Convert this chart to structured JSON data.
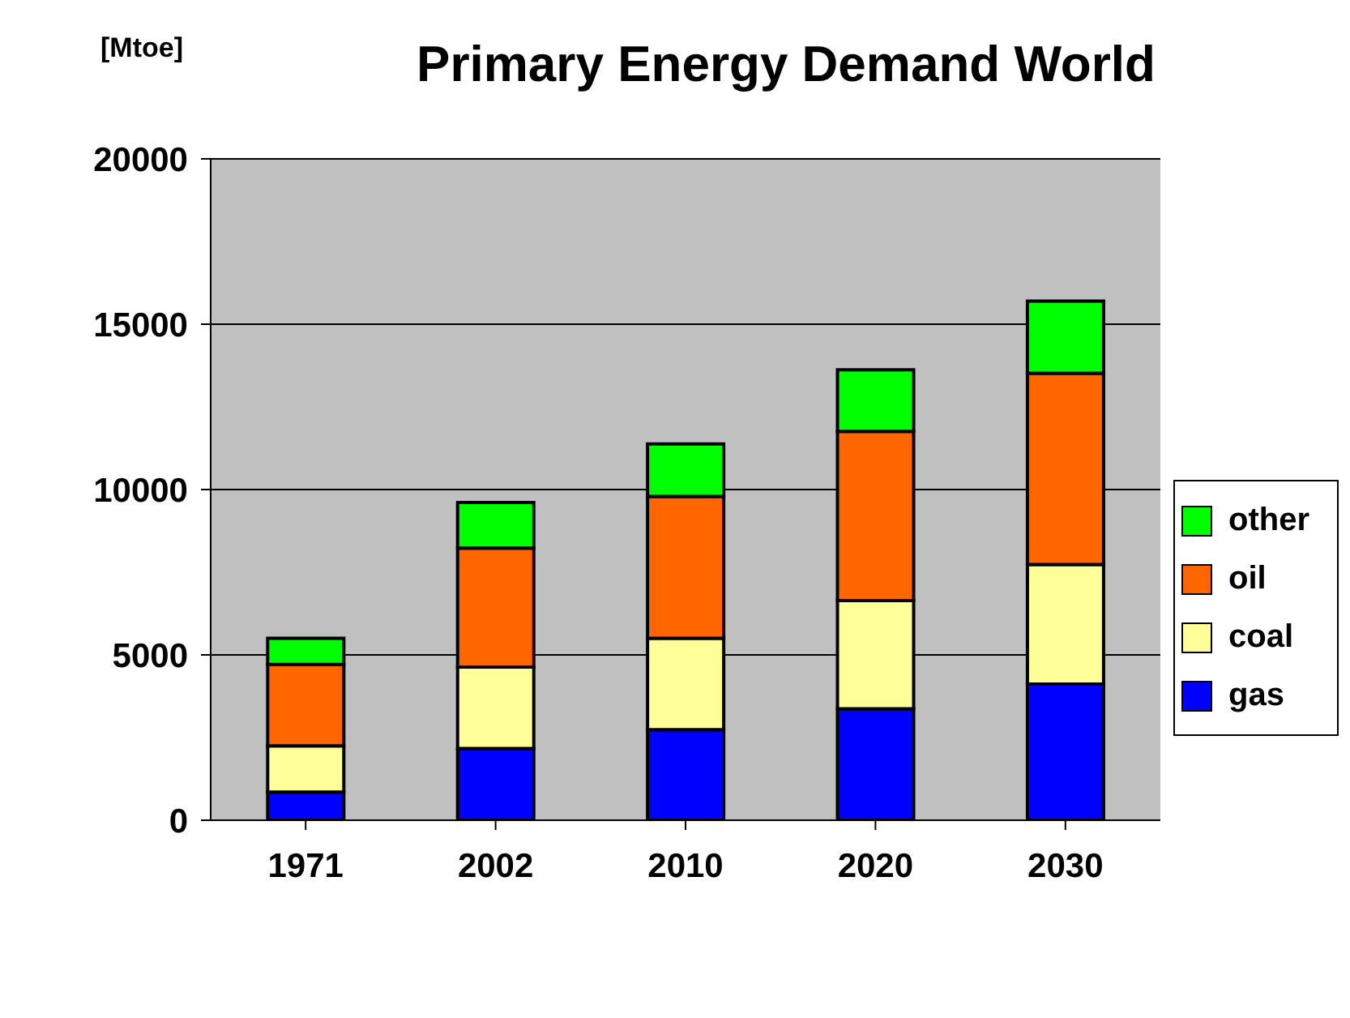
{
  "chart_data": {
    "type": "bar",
    "title": "Primary Energy Demand World",
    "ylabel": "[Mtoe]",
    "categories": [
      "1971",
      "2002",
      "2010",
      "2020",
      "2030"
    ],
    "series": [
      {
        "name": "gas",
        "color": "#0000ff",
        "values": [
          850,
          2170,
          2740,
          3370,
          4120
        ]
      },
      {
        "name": "coal",
        "color": "#ffff99",
        "values": [
          1400,
          2460,
          2760,
          3270,
          3610
        ]
      },
      {
        "name": "oil",
        "color": "#ff6600",
        "values": [
          2460,
          3600,
          4290,
          5120,
          5790
        ]
      },
      {
        "name": "other",
        "color": "#00ff00",
        "values": [
          790,
          1380,
          1590,
          1860,
          2180
        ]
      }
    ],
    "stacked": true,
    "ylim": [
      0,
      20000
    ],
    "yticks": [
      0,
      5000,
      10000,
      15000,
      20000
    ],
    "grid": "y",
    "legend": "right"
  }
}
